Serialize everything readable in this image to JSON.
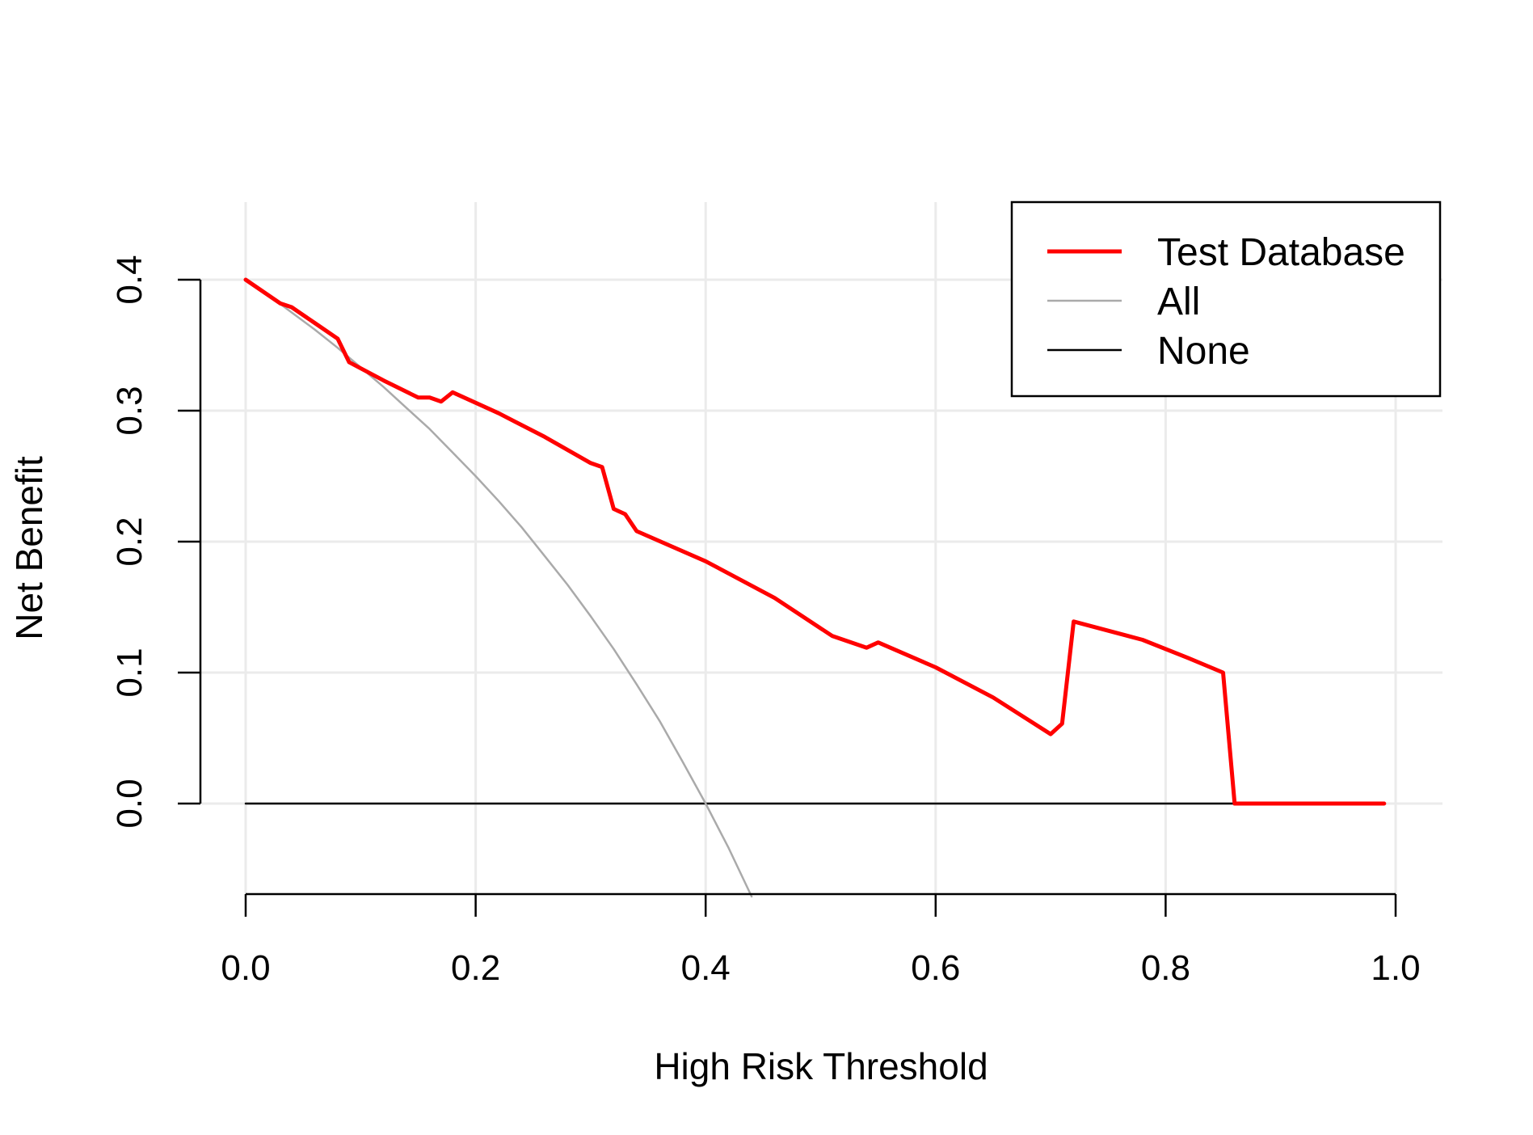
{
  "chart_data": {
    "type": "line",
    "title": "",
    "xlabel": "High Risk Threshold",
    "ylabel": "Net Benefit",
    "xlim": [
      0,
      1
    ],
    "ylim": [
      -0.07,
      0.45
    ],
    "x_ticks": [
      0.0,
      0.2,
      0.4,
      0.6,
      0.8,
      1.0
    ],
    "x_tick_labels": [
      "0.0",
      "0.2",
      "0.4",
      "0.6",
      "0.8",
      "1.0"
    ],
    "y_ticks": [
      0.0,
      0.1,
      0.2,
      0.3,
      0.4
    ],
    "y_tick_labels": [
      "0.0",
      "0.1",
      "0.2",
      "0.3",
      "0.4"
    ],
    "grid": true,
    "legend_position": "top-right",
    "series": [
      {
        "name": "Test Database",
        "color": "#ff0000",
        "x": [
          0.0,
          0.03,
          0.04,
          0.06,
          0.08,
          0.09,
          0.12,
          0.15,
          0.16,
          0.17,
          0.18,
          0.22,
          0.26,
          0.3,
          0.31,
          0.32,
          0.33,
          0.34,
          0.4,
          0.46,
          0.51,
          0.54,
          0.55,
          0.6,
          0.65,
          0.7,
          0.71,
          0.72,
          0.78,
          0.82,
          0.85,
          0.86,
          0.99
        ],
        "y": [
          0.4,
          0.382,
          0.379,
          0.367,
          0.355,
          0.337,
          0.323,
          0.31,
          0.31,
          0.307,
          0.314,
          0.298,
          0.28,
          0.26,
          0.257,
          0.225,
          0.221,
          0.208,
          0.185,
          0.157,
          0.128,
          0.119,
          0.123,
          0.104,
          0.081,
          0.053,
          0.061,
          0.139,
          0.125,
          0.111,
          0.1,
          0.0,
          0.0
        ]
      },
      {
        "name": "All",
        "color": "#aaaaaa",
        "x": [
          0.0,
          0.02,
          0.04,
          0.06,
          0.08,
          0.1,
          0.12,
          0.14,
          0.16,
          0.18,
          0.2,
          0.22,
          0.24,
          0.26,
          0.28,
          0.3,
          0.32,
          0.34,
          0.36,
          0.38,
          0.4,
          0.42,
          0.44
        ],
        "y": [
          0.4,
          0.388,
          0.375,
          0.362,
          0.348,
          0.333,
          0.318,
          0.302,
          0.286,
          0.268,
          0.25,
          0.231,
          0.211,
          0.189,
          0.167,
          0.143,
          0.118,
          0.091,
          0.063,
          0.032,
          0.0,
          -0.034,
          -0.071
        ]
      },
      {
        "name": "None",
        "color": "#000000",
        "x": [
          0.0,
          0.99
        ],
        "y": [
          0.0,
          0.0
        ]
      }
    ]
  }
}
